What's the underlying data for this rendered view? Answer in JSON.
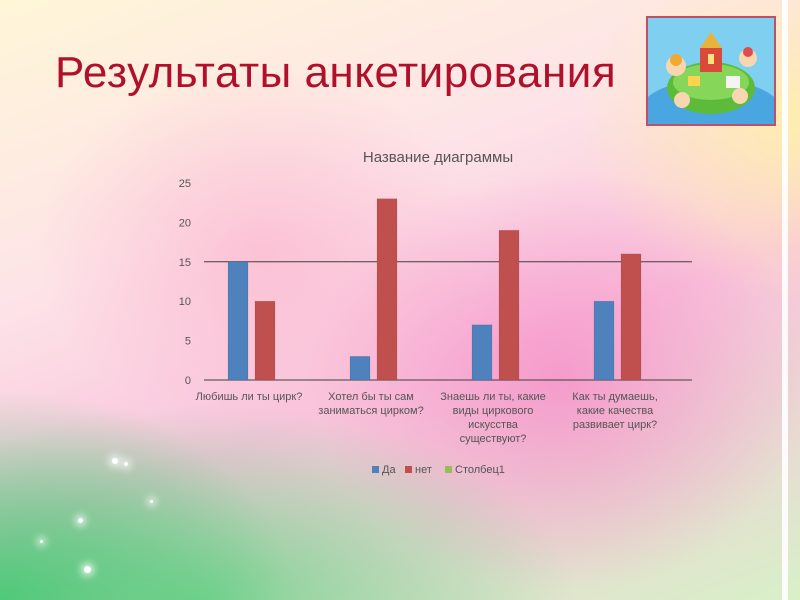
{
  "slide": {
    "title": "Результаты анкетирования"
  },
  "logo": {
    "icon": "circus-globe-illustration"
  },
  "colors": {
    "series_da": "#4f81bd",
    "series_net": "#c0504d",
    "series_col1": "#9bbb59",
    "title": "#b0102a",
    "grid": "#404040"
  },
  "chart_data": {
    "type": "bar",
    "title": "Название диаграммы",
    "categories": [
      [
        "Любишь ли ты цирк?"
      ],
      [
        "Хотел бы ты сам",
        "заниматься цирком?"
      ],
      [
        "Знаешь ли ты, какие",
        "виды циркового",
        "искусства",
        "существуют?"
      ],
      [
        "Как ты думаешь,",
        "какие качества",
        "развивает цирк?"
      ]
    ],
    "series": [
      {
        "name": "Да",
        "values": [
          15,
          3,
          7,
          10
        ]
      },
      {
        "name": "нет",
        "values": [
          10,
          23,
          19,
          16
        ]
      },
      {
        "name": "Столбец1",
        "values": [
          0,
          0,
          0,
          0
        ]
      }
    ],
    "yticks": [
      "0",
      "5",
      "10",
      "15",
      "20",
      "25"
    ],
    "ylim": [
      0,
      25
    ],
    "legend_position": "bottom",
    "xlabel": "",
    "ylabel": ""
  }
}
